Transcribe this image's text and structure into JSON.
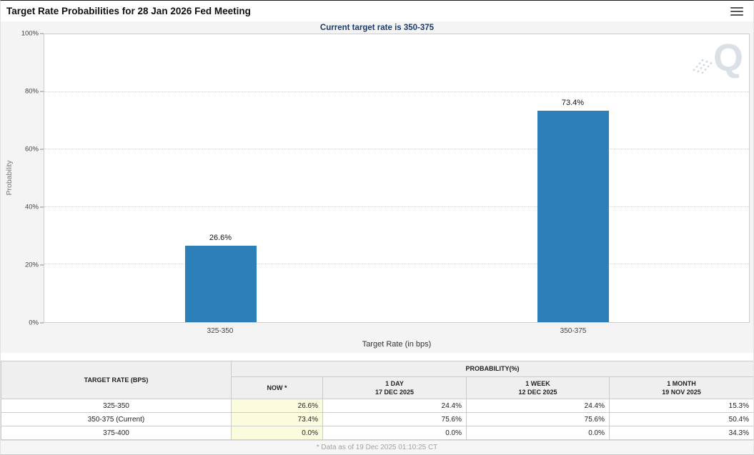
{
  "header": {
    "title": "Target Rate Probabilities for 28 Jan 2026 Fed Meeting",
    "subtitle": "Current target rate is 350-375"
  },
  "branding": {
    "watermark": "Q"
  },
  "colors": {
    "bar": "#2d7fb8",
    "now_column_highlight": "#fbfbde",
    "subtitle_text": "#1b3a6b"
  },
  "chart_data": {
    "type": "bar",
    "title": "Target Rate Probabilities for 28 Jan 2026 Fed Meeting",
    "subtitle": "Current target rate is 350-375",
    "categories": [
      "325-350",
      "350-375"
    ],
    "values": [
      26.6,
      73.4
    ],
    "bar_labels": [
      "26.6%",
      "73.4%"
    ],
    "xlabel": "Target Rate (in bps)",
    "ylabel": "Probability",
    "ylim": [
      0,
      100
    ],
    "yticks": [
      "0%",
      "20%",
      "40%",
      "60%",
      "80%",
      "100%"
    ],
    "ytick_values": [
      0,
      20,
      40,
      60,
      80,
      100
    ],
    "grid": true,
    "legend": false,
    "bar_color": "#2d7fb8"
  },
  "table": {
    "col1_header": "TARGET RATE (BPS)",
    "group_header": "PROBABILITY(%)",
    "columns": [
      {
        "label": "NOW *",
        "sub": ""
      },
      {
        "label": "1 DAY",
        "sub": "17 DEC 2025"
      },
      {
        "label": "1 WEEK",
        "sub": "12 DEC 2025"
      },
      {
        "label": "1 MONTH",
        "sub": "19 NOV 2025"
      }
    ],
    "rows": [
      {
        "rate": "325-350",
        "now": "26.6%",
        "day": "24.4%",
        "week": "24.4%",
        "month": "15.3%"
      },
      {
        "rate": "350-375 (Current)",
        "now": "73.4%",
        "day": "75.6%",
        "week": "75.6%",
        "month": "50.4%"
      },
      {
        "rate": "375-400",
        "now": "0.0%",
        "day": "0.0%",
        "week": "0.0%",
        "month": "34.3%"
      }
    ]
  },
  "footer": {
    "note": "* Data as of 19 Dec 2025 01:10:25 CT"
  }
}
